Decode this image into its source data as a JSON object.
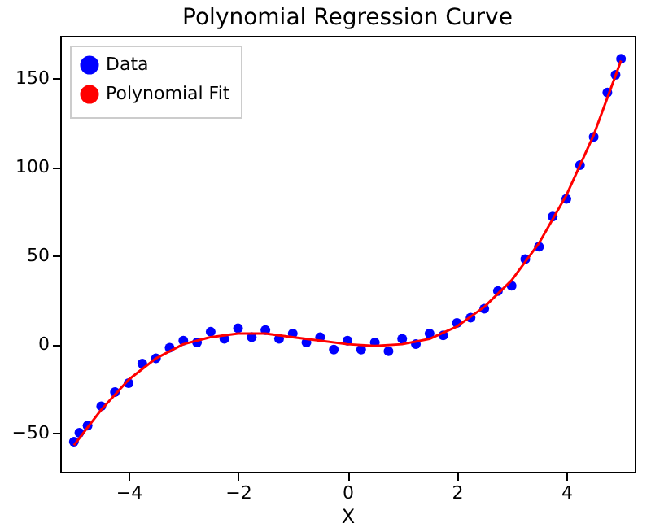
{
  "chart_data": {
    "type": "scatter",
    "title": "Polynomial Regression Curve",
    "xlabel": "X",
    "xlim": [
      -5.25,
      5.25
    ],
    "ylim": [
      -72,
      174
    ],
    "xticks": [
      -4,
      -2,
      0,
      2,
      4
    ],
    "yticks": [
      -50,
      0,
      50,
      100,
      150
    ],
    "grid": false,
    "legend": "top left",
    "marker": "circle",
    "series": [
      {
        "name": "Data",
        "color": "#0000ff",
        "x": [
          -5,
          -4.9,
          -4.75,
          -4.5,
          -4.25,
          -4,
          -3.75,
          -3.5,
          -3.25,
          -3,
          -2.75,
          -2.5,
          -2.25,
          -2,
          -1.75,
          -1.5,
          -1.25,
          -1,
          -0.75,
          -0.5,
          -0.25,
          0,
          0.25,
          0.5,
          0.75,
          1,
          1.25,
          1.5,
          1.75,
          2,
          2.25,
          2.5,
          2.75,
          3,
          3.25,
          3.5,
          3.75,
          4,
          4.25,
          4.5,
          4.75,
          4.9,
          5
        ],
        "values": [
          -55,
          -50,
          -46,
          -35,
          -27,
          -22,
          -11,
          -8,
          -2,
          2,
          1,
          7,
          3,
          9,
          4,
          8,
          3,
          6,
          1,
          4,
          -3,
          2,
          -3,
          1,
          -4,
          3,
          0,
          6,
          5,
          12,
          15,
          20,
          30,
          33,
          48,
          55,
          72,
          82,
          101,
          117,
          142,
          152,
          161
        ]
      },
      {
        "name": "Polynomial Fit",
        "type": "line",
        "color": "#ff0000",
        "line_style": "solid",
        "marker": "none",
        "x": [
          -5,
          -4.5,
          -4,
          -3.5,
          -3,
          -2.5,
          -2,
          -1.5,
          -1,
          -0.5,
          0,
          0.5,
          1,
          1.5,
          2,
          2.5,
          3,
          3.5,
          4,
          4.5,
          5
        ],
        "values": [
          -57,
          -37,
          -20,
          -8,
          0,
          4,
          6,
          6,
          4,
          2,
          0,
          -1,
          0,
          3,
          10,
          21,
          36,
          57,
          84,
          118,
          160
        ]
      }
    ]
  }
}
